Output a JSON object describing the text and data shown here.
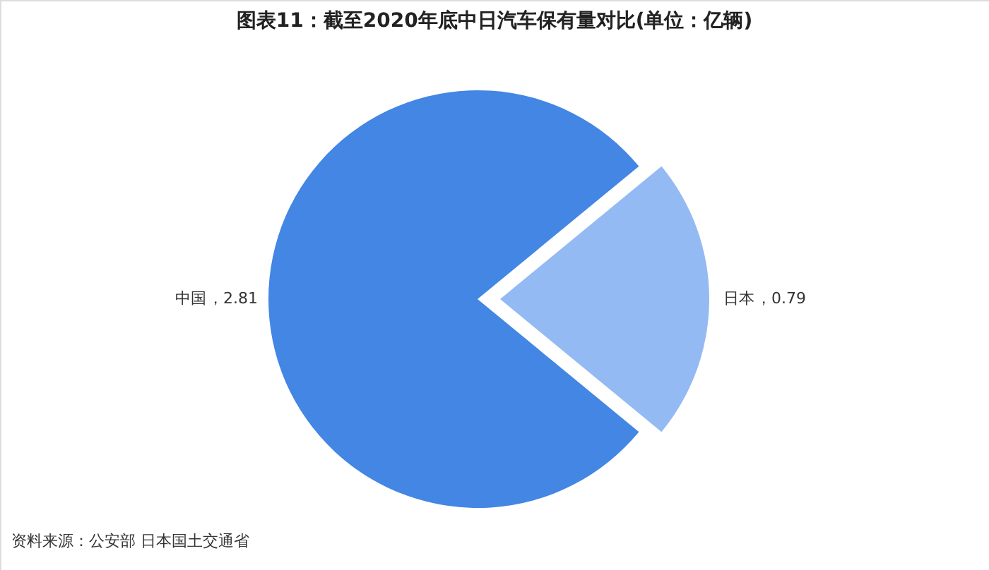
{
  "chart_data": {
    "type": "pie",
    "title": "图表11：截至2020年底中日汽车保有量对比(单位：亿辆)",
    "categories": [
      "中国",
      "日本"
    ],
    "values": [
      2.81,
      0.79
    ],
    "colors": [
      "#4386e4",
      "#93baf3"
    ],
    "value_labels": [
      "，2.81",
      "，0.79"
    ],
    "annotations": [
      "资料来源：公安部 日本国土交通省"
    ]
  }
}
